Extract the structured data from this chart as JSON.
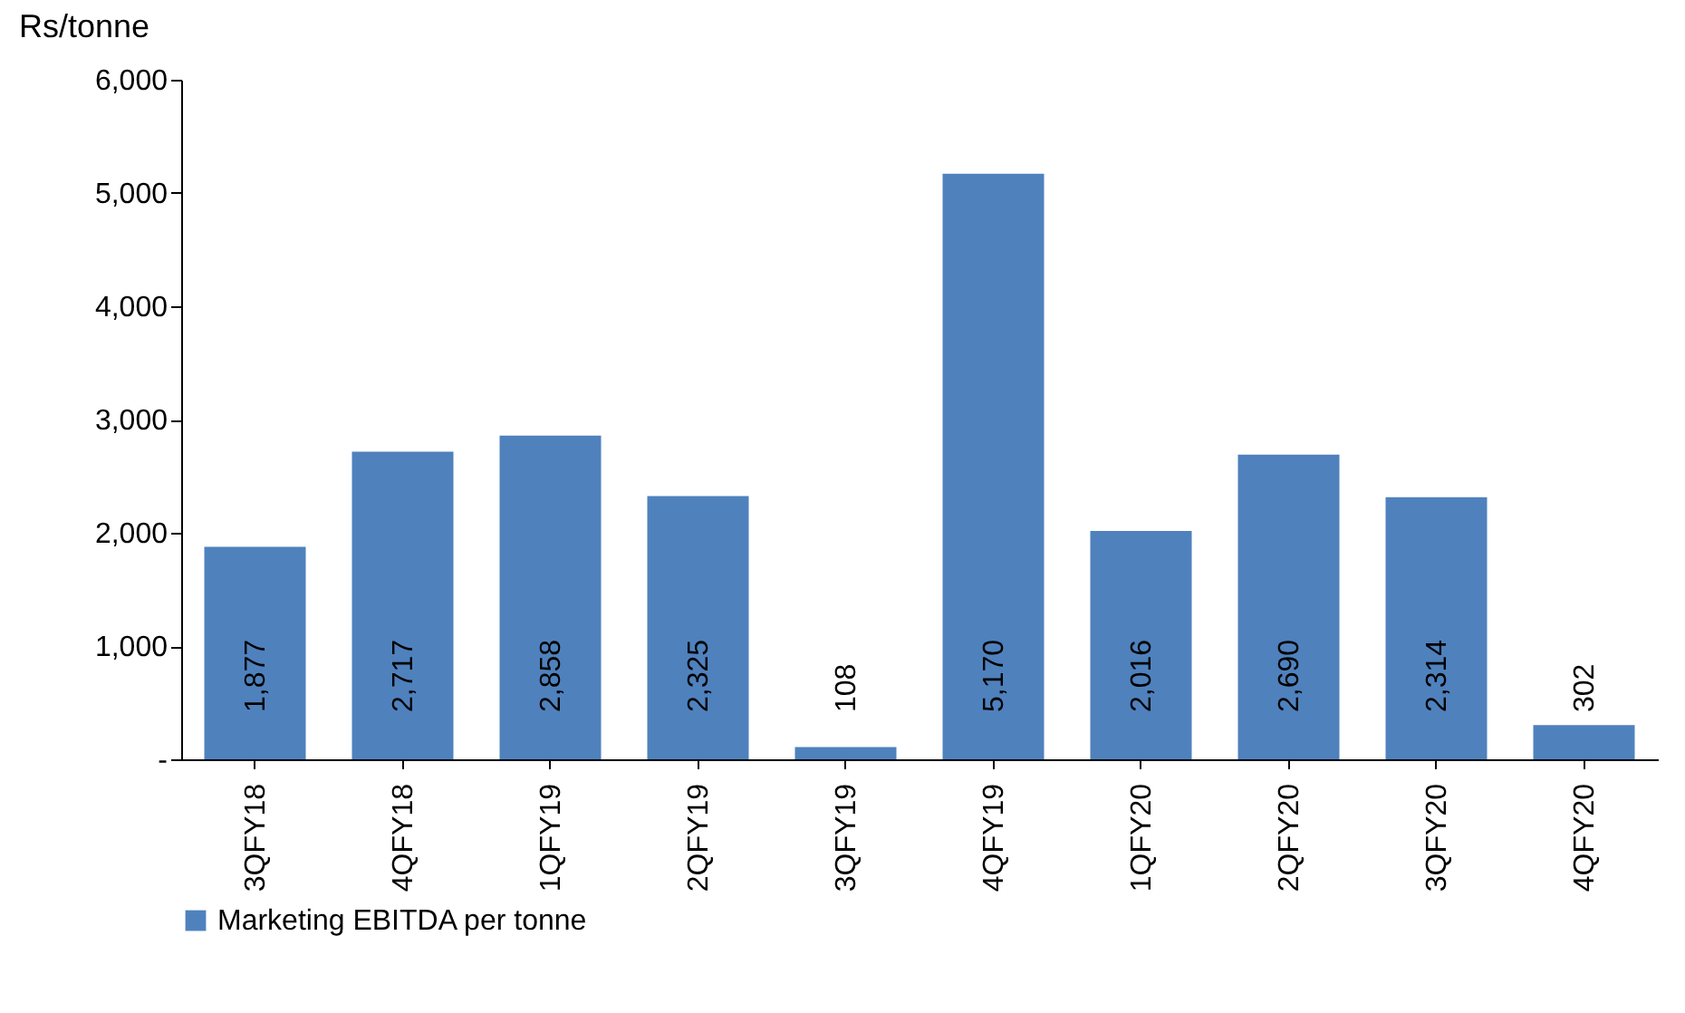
{
  "chart_data": {
    "type": "bar",
    "ylabel": "Rs/tonne",
    "categories": [
      "3QFY18",
      "4QFY18",
      "1QFY19",
      "2QFY19",
      "3QFY19",
      "4QFY19",
      "1QFY20",
      "2QFY20",
      "3QFY20",
      "4QFY20"
    ],
    "series": [
      {
        "name": "Marketing EBITDA per tonne",
        "color": "#4f81bd",
        "values": [
          1877,
          2717,
          2858,
          2325,
          108,
          5170,
          2016,
          2690,
          2314,
          302
        ],
        "value_labels": [
          "1,877",
          "2,717",
          "2,858",
          "2,325",
          "108",
          "5,170",
          "2,016",
          "2,690",
          "2,314",
          "302"
        ]
      }
    ],
    "ylim": [
      0,
      6000
    ],
    "yticks": [
      {
        "value": 0,
        "label": "-"
      },
      {
        "value": 1000,
        "label": "1,000"
      },
      {
        "value": 2000,
        "label": "2,000"
      },
      {
        "value": 3000,
        "label": "3,000"
      },
      {
        "value": 4000,
        "label": "4,000"
      },
      {
        "value": 5000,
        "label": "5,000"
      },
      {
        "value": 6000,
        "label": "6,000"
      }
    ],
    "grid": false,
    "legend": "bottom"
  }
}
